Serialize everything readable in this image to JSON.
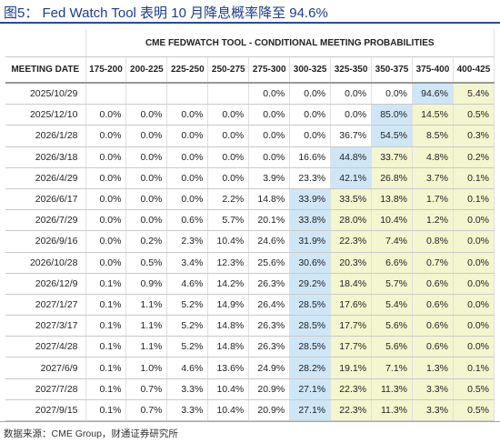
{
  "title": "图5： Fed Watch Tool 表明 10 月降息概率降至 94.6%",
  "source": "数据来源：CME Group，财通证券研究所",
  "colors": {
    "blue_highlight": "#cfe6f7",
    "yellow_highlight": "#f4f6cf",
    "title": "#1f3c88"
  },
  "chart_data": {
    "type": "table",
    "title": "CME FEDWATCH TOOL - CONDITIONAL MEETING PROBABILITIES",
    "row_header": "MEETING DATE",
    "columns": [
      "175-200",
      "200-225",
      "225-250",
      "250-275",
      "275-300",
      "300-325",
      "325-350",
      "350-375",
      "375-400",
      "400-425"
    ],
    "rows": [
      {
        "date": "2025/10/29",
        "values": [
          "",
          "",
          "",
          "",
          "0.0%",
          "0.0%",
          "0.0%",
          "0.0%",
          "94.6%",
          "5.4%"
        ]
      },
      {
        "date": "2025/12/10",
        "values": [
          "0.0%",
          "0.0%",
          "0.0%",
          "0.0%",
          "0.0%",
          "0.0%",
          "0.0%",
          "85.0%",
          "14.5%",
          "0.5%"
        ]
      },
      {
        "date": "2026/1/28",
        "values": [
          "0.0%",
          "0.0%",
          "0.0%",
          "0.0%",
          "0.0%",
          "0.0%",
          "36.7%",
          "54.5%",
          "8.5%",
          "0.3%"
        ]
      },
      {
        "date": "2026/3/18",
        "values": [
          "0.0%",
          "0.0%",
          "0.0%",
          "0.0%",
          "0.0%",
          "16.6%",
          "44.8%",
          "33.7%",
          "4.8%",
          "0.2%"
        ]
      },
      {
        "date": "2026/4/29",
        "values": [
          "0.0%",
          "0.0%",
          "0.0%",
          "0.0%",
          "3.9%",
          "23.3%",
          "42.1%",
          "26.8%",
          "3.7%",
          "0.1%"
        ]
      },
      {
        "date": "2026/6/17",
        "values": [
          "0.0%",
          "0.0%",
          "0.0%",
          "2.2%",
          "14.8%",
          "33.9%",
          "33.5%",
          "13.8%",
          "1.7%",
          "0.1%"
        ]
      },
      {
        "date": "2026/7/29",
        "values": [
          "0.0%",
          "0.0%",
          "0.6%",
          "5.7%",
          "20.1%",
          "33.8%",
          "28.0%",
          "10.4%",
          "1.2%",
          "0.0%"
        ]
      },
      {
        "date": "2026/9/16",
        "values": [
          "0.0%",
          "0.2%",
          "2.3%",
          "10.4%",
          "24.6%",
          "31.9%",
          "22.3%",
          "7.4%",
          "0.8%",
          "0.0%"
        ]
      },
      {
        "date": "2026/10/28",
        "values": [
          "0.0%",
          "0.5%",
          "3.4%",
          "12.3%",
          "25.6%",
          "30.6%",
          "20.3%",
          "6.6%",
          "0.7%",
          "0.0%"
        ]
      },
      {
        "date": "2026/12/9",
        "values": [
          "0.1%",
          "0.9%",
          "4.6%",
          "14.2%",
          "26.3%",
          "29.2%",
          "18.4%",
          "5.7%",
          "0.6%",
          "0.0%"
        ]
      },
      {
        "date": "2027/1/27",
        "values": [
          "0.1%",
          "1.1%",
          "5.2%",
          "14.9%",
          "26.4%",
          "28.5%",
          "17.6%",
          "5.4%",
          "0.6%",
          "0.0%"
        ]
      },
      {
        "date": "2027/3/17",
        "values": [
          "0.1%",
          "1.1%",
          "5.2%",
          "14.8%",
          "26.3%",
          "28.5%",
          "17.7%",
          "5.6%",
          "0.6%",
          "0.0%"
        ]
      },
      {
        "date": "2027/4/28",
        "values": [
          "0.1%",
          "1.1%",
          "5.2%",
          "14.8%",
          "26.3%",
          "28.5%",
          "17.7%",
          "5.6%",
          "0.6%",
          "0.0%"
        ]
      },
      {
        "date": "2027/6/9",
        "values": [
          "0.1%",
          "1.0%",
          "4.6%",
          "13.6%",
          "24.9%",
          "28.2%",
          "19.1%",
          "7.1%",
          "1.3%",
          "0.1%"
        ]
      },
      {
        "date": "2027/7/28",
        "values": [
          "0.1%",
          "0.7%",
          "3.3%",
          "10.4%",
          "20.9%",
          "27.1%",
          "22.3%",
          "11.3%",
          "3.3%",
          "0.5%"
        ]
      },
      {
        "date": "2027/9/15",
        "values": [
          "0.1%",
          "0.7%",
          "3.3%",
          "10.4%",
          "20.9%",
          "27.1%",
          "22.3%",
          "11.3%",
          "3.3%",
          "0.5%"
        ]
      }
    ],
    "highlights": {
      "blue": [
        [
          0,
          8
        ],
        [
          1,
          7
        ],
        [
          2,
          7
        ],
        [
          3,
          6
        ],
        [
          4,
          6
        ],
        [
          5,
          5
        ],
        [
          6,
          5
        ],
        [
          7,
          5
        ],
        [
          8,
          5
        ],
        [
          9,
          5
        ],
        [
          10,
          5
        ],
        [
          11,
          5
        ],
        [
          12,
          5
        ],
        [
          13,
          5
        ],
        [
          14,
          5
        ],
        [
          15,
          5
        ]
      ],
      "yellow_from_col": [
        [
          0,
          9
        ],
        [
          1,
          8
        ],
        [
          2,
          8
        ],
        [
          3,
          7
        ],
        [
          4,
          7
        ],
        [
          5,
          6
        ],
        [
          6,
          6
        ],
        [
          7,
          6
        ],
        [
          8,
          6
        ],
        [
          9,
          6
        ],
        [
          10,
          6
        ],
        [
          11,
          6
        ],
        [
          12,
          6
        ],
        [
          13,
          6
        ],
        [
          14,
          6
        ],
        [
          15,
          6
        ]
      ]
    }
  }
}
